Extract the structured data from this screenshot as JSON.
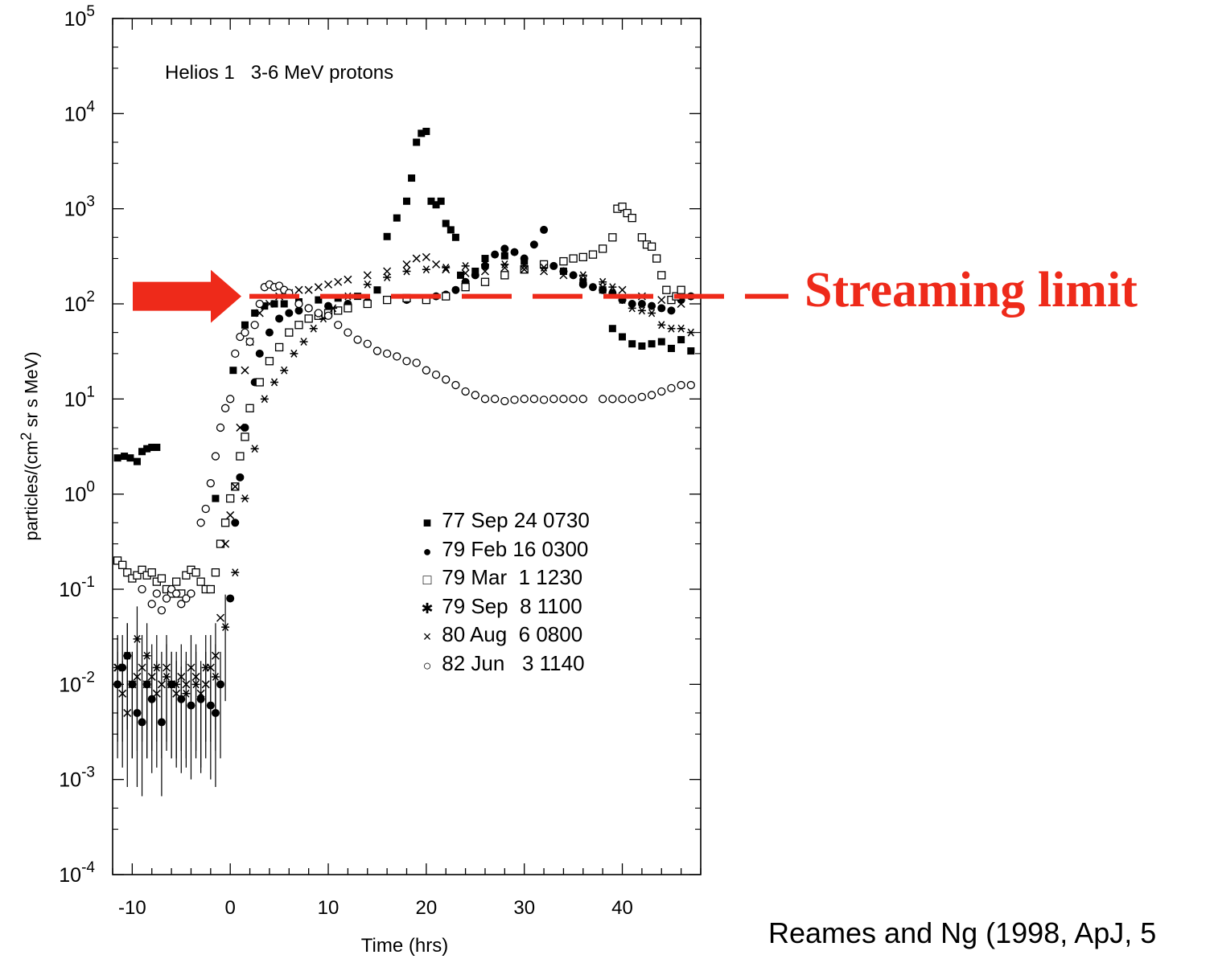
{
  "chart_data": {
    "type": "scatter",
    "title": "Helios 1   3-6 MeV protons",
    "xlabel": "Time (hrs)",
    "ylabel": "particles/(cm2 sr s MeV)",
    "ylabel_parts": [
      "particles/(cm",
      "2",
      " sr s MeV)"
    ],
    "xlim": [
      -12,
      48
    ],
    "ylim": [
      0.0001,
      100000
    ],
    "yscale": "log",
    "x_ticks": [
      -10,
      0,
      10,
      20,
      30,
      40
    ],
    "y_ticks": [
      {
        "base": "10",
        "exp": "-4",
        "value": 0.0001
      },
      {
        "base": "10",
        "exp": "-3",
        "value": 0.001
      },
      {
        "base": "10",
        "exp": "-2",
        "value": 0.01
      },
      {
        "base": "10",
        "exp": "-1",
        "value": 0.1
      },
      {
        "base": "10",
        "exp": "0",
        "value": 1
      },
      {
        "base": "10",
        "exp": "1",
        "value": 10
      },
      {
        "base": "10",
        "exp": "2",
        "value": 100
      },
      {
        "base": "10",
        "exp": "3",
        "value": 1000
      },
      {
        "base": "10",
        "exp": "4",
        "value": 10000
      },
      {
        "base": "10",
        "exp": "5",
        "value": 100000
      }
    ],
    "legend_position": "center-right",
    "annotation": {
      "text": "Streaming limit",
      "y": 120,
      "color": "#ee2a1a"
    },
    "citation": "Reames and Ng (1998, ApJ, 5",
    "series": [
      {
        "name": "77 Sep 24 0730",
        "marker": "filled-square",
        "x": [
          -11.5,
          -10.8,
          -10.2,
          -9.5,
          -9,
          -8.5,
          -8,
          -7.5,
          -1.5,
          0.3,
          1.5,
          2.5,
          3.5,
          4.5,
          5.5,
          7,
          9,
          11,
          13,
          15,
          16,
          17,
          18,
          18.5,
          19,
          19.5,
          20,
          20.5,
          21,
          21.5,
          22,
          22.5,
          23,
          23.5,
          24,
          25,
          26,
          28,
          30,
          32,
          34,
          36,
          38,
          39,
          40,
          41,
          42,
          43,
          44,
          45,
          46,
          47
        ],
        "y": [
          2.4,
          2.5,
          2.4,
          2.2,
          2.8,
          3,
          3.1,
          3.1,
          0.9,
          20,
          60,
          80,
          95,
          100,
          100,
          105,
          110,
          115,
          120,
          140,
          510,
          800,
          1200,
          2100,
          5000,
          6200,
          6500,
          1200,
          1100,
          1200,
          700,
          600,
          500,
          200,
          160,
          220,
          300,
          320,
          280,
          260,
          220,
          170,
          140,
          55,
          45,
          38,
          36,
          38,
          40,
          34,
          42,
          32
        ]
      },
      {
        "name": "79 Feb 16 0300",
        "marker": "filled-circle",
        "x": [
          -11.5,
          -11,
          -10.5,
          -10,
          -9.5,
          -9,
          -8.5,
          -8,
          -7,
          -6,
          -5,
          -4,
          -3,
          -2,
          -1.5,
          -1,
          0,
          0.5,
          1,
          1.5,
          2,
          2.5,
          3,
          4,
          5,
          6,
          7,
          8,
          10,
          12,
          14,
          16,
          18,
          20,
          21,
          22,
          23,
          24,
          25,
          26,
          27,
          28,
          29,
          30,
          31,
          32,
          33,
          34,
          35,
          36,
          37,
          38,
          39,
          40,
          41,
          42,
          43,
          44,
          45,
          46,
          47
        ],
        "y": [
          0.01,
          0.015,
          0.02,
          0.01,
          0.005,
          0.004,
          0.01,
          0.007,
          0.004,
          0.01,
          0.007,
          0.006,
          0.007,
          0.006,
          0.005,
          0.01,
          0.08,
          0.5,
          1.5,
          5,
          8,
          15,
          30,
          50,
          70,
          80,
          85,
          90,
          95,
          100,
          105,
          110,
          110,
          115,
          120,
          125,
          140,
          170,
          200,
          250,
          330,
          380,
          350,
          300,
          420,
          600,
          250,
          220,
          200,
          160,
          150,
          140,
          130,
          110,
          100,
          100,
          95,
          90,
          85,
          110,
          120
        ]
      },
      {
        "name": "79 Mar  1 1230",
        "marker": "open-square",
        "x": [
          -11.5,
          -11,
          -10.5,
          -10,
          -9.5,
          -9,
          -8.5,
          -8,
          -7.5,
          -7,
          -6.5,
          -6,
          -5.5,
          -5,
          -4.5,
          -4,
          -3.5,
          -3,
          -2.5,
          -2,
          -1.5,
          -1,
          -0.5,
          0,
          0.5,
          1,
          1.5,
          2,
          3,
          4,
          5,
          6,
          7,
          8,
          9,
          10,
          11,
          12,
          14,
          16,
          18,
          20,
          22,
          24,
          26,
          28,
          30,
          32,
          34,
          35,
          36,
          37,
          38,
          39,
          39.5,
          40,
          40.5,
          41,
          42,
          42.5,
          43,
          43.5,
          44,
          44.5,
          45,
          45.5,
          46
        ],
        "y": [
          0.2,
          0.18,
          0.15,
          0.13,
          0.14,
          0.16,
          0.14,
          0.15,
          0.12,
          0.13,
          0.1,
          0.09,
          0.12,
          0.09,
          0.14,
          0.16,
          0.15,
          0.12,
          0.1,
          0.1,
          0.15,
          0.3,
          0.5,
          0.9,
          1.2,
          2.5,
          4,
          8,
          15,
          25,
          35,
          50,
          60,
          70,
          75,
          80,
          85,
          90,
          100,
          110,
          115,
          110,
          120,
          150,
          170,
          200,
          230,
          260,
          280,
          300,
          310,
          330,
          380,
          500,
          1000,
          1050,
          900,
          800,
          500,
          420,
          400,
          300,
          200,
          140,
          110,
          120,
          140
        ]
      },
      {
        "name": "79 Sep  8 1100",
        "marker": "asterisk",
        "x": [
          -11.5,
          -10.5,
          -9.5,
          -8.5,
          -7.5,
          -6.5,
          -5.5,
          -4.5,
          -3.5,
          -2.5,
          -1.5,
          -0.5,
          0.5,
          1.5,
          2.5,
          3.5,
          4.5,
          5.5,
          6.5,
          7.5,
          8.5,
          9.5,
          10.5,
          12,
          14,
          16,
          18,
          20,
          22,
          24,
          26,
          28,
          30,
          32,
          34,
          36,
          38,
          39,
          40,
          41,
          42,
          43,
          44,
          45,
          46,
          47
        ],
        "y": [
          0.015,
          0.02,
          0.03,
          0.02,
          0.015,
          0.012,
          0.01,
          0.008,
          0.01,
          0.015,
          0.012,
          0.04,
          0.15,
          0.9,
          3,
          10,
          15,
          20,
          30,
          40,
          55,
          70,
          90,
          120,
          160,
          190,
          220,
          230,
          240,
          250,
          260,
          260,
          250,
          240,
          220,
          200,
          170,
          150,
          110,
          90,
          85,
          80,
          60,
          55,
          55,
          50
        ]
      },
      {
        "name": "80 Aug  6 0800",
        "marker": "cross",
        "x": [
          -11.5,
          -11,
          -10.5,
          -10,
          -9.5,
          -9,
          -8.5,
          -8,
          -7.5,
          -7,
          -6.5,
          -6,
          -5.5,
          -5,
          -4.5,
          -4,
          -3.5,
          -3,
          -2.5,
          -2,
          -1.5,
          -1,
          -0.5,
          0,
          0.5,
          1,
          1.5,
          2,
          3,
          4,
          5,
          6,
          7,
          8,
          9,
          10,
          11,
          12,
          14,
          16,
          18,
          19,
          20,
          21,
          22,
          24,
          26,
          28,
          30,
          32,
          34,
          36,
          38,
          40,
          42,
          44,
          46
        ],
        "y": [
          0.015,
          0.008,
          0.005,
          0.01,
          0.012,
          0.015,
          0.01,
          0.012,
          0.008,
          0.01,
          0.015,
          0.01,
          0.008,
          0.012,
          0.01,
          0.015,
          0.012,
          0.008,
          0.01,
          0.015,
          0.02,
          0.05,
          0.3,
          0.6,
          1.2,
          5,
          20,
          40,
          80,
          100,
          120,
          130,
          140,
          140,
          150,
          160,
          170,
          180,
          200,
          220,
          260,
          300,
          310,
          260,
          230,
          210,
          220,
          240,
          230,
          220,
          200,
          180,
          150,
          140,
          120,
          110,
          100
        ]
      },
      {
        "name": "82 Jun   3 1140",
        "marker": "open-circle",
        "x": [
          -9,
          -8,
          -7.5,
          -7,
          -6.5,
          -6,
          -5.5,
          -5,
          -4.5,
          -4,
          -3,
          -2.5,
          -2,
          -1.5,
          -1,
          -0.5,
          0,
          0.5,
          1,
          1.5,
          2,
          2.5,
          3,
          3.5,
          4,
          4.5,
          5,
          5.5,
          6,
          7,
          8,
          9,
          10,
          11,
          12,
          13,
          14,
          15,
          16,
          17,
          18,
          19,
          20,
          21,
          22,
          23,
          24,
          25,
          26,
          27,
          28,
          29,
          30,
          31,
          32,
          33,
          34,
          35,
          36,
          38,
          39,
          40,
          41,
          42,
          43,
          44,
          45,
          46,
          47
        ],
        "y": [
          0.1,
          0.07,
          0.09,
          0.06,
          0.08,
          0.1,
          0.09,
          0.07,
          0.08,
          0.09,
          0.5,
          0.7,
          1.3,
          2.5,
          5,
          8,
          10,
          30,
          45,
          50,
          40,
          60,
          100,
          150,
          160,
          150,
          155,
          140,
          130,
          100,
          90,
          80,
          75,
          60,
          50,
          42,
          38,
          32,
          30,
          28,
          25,
          24,
          20,
          18,
          16,
          14,
          12,
          11,
          10,
          10,
          9.5,
          9.8,
          10,
          10,
          9.8,
          10,
          10,
          10,
          10,
          10,
          10,
          10,
          10,
          10.5,
          11,
          12,
          13,
          14,
          14
        ]
      }
    ]
  }
}
